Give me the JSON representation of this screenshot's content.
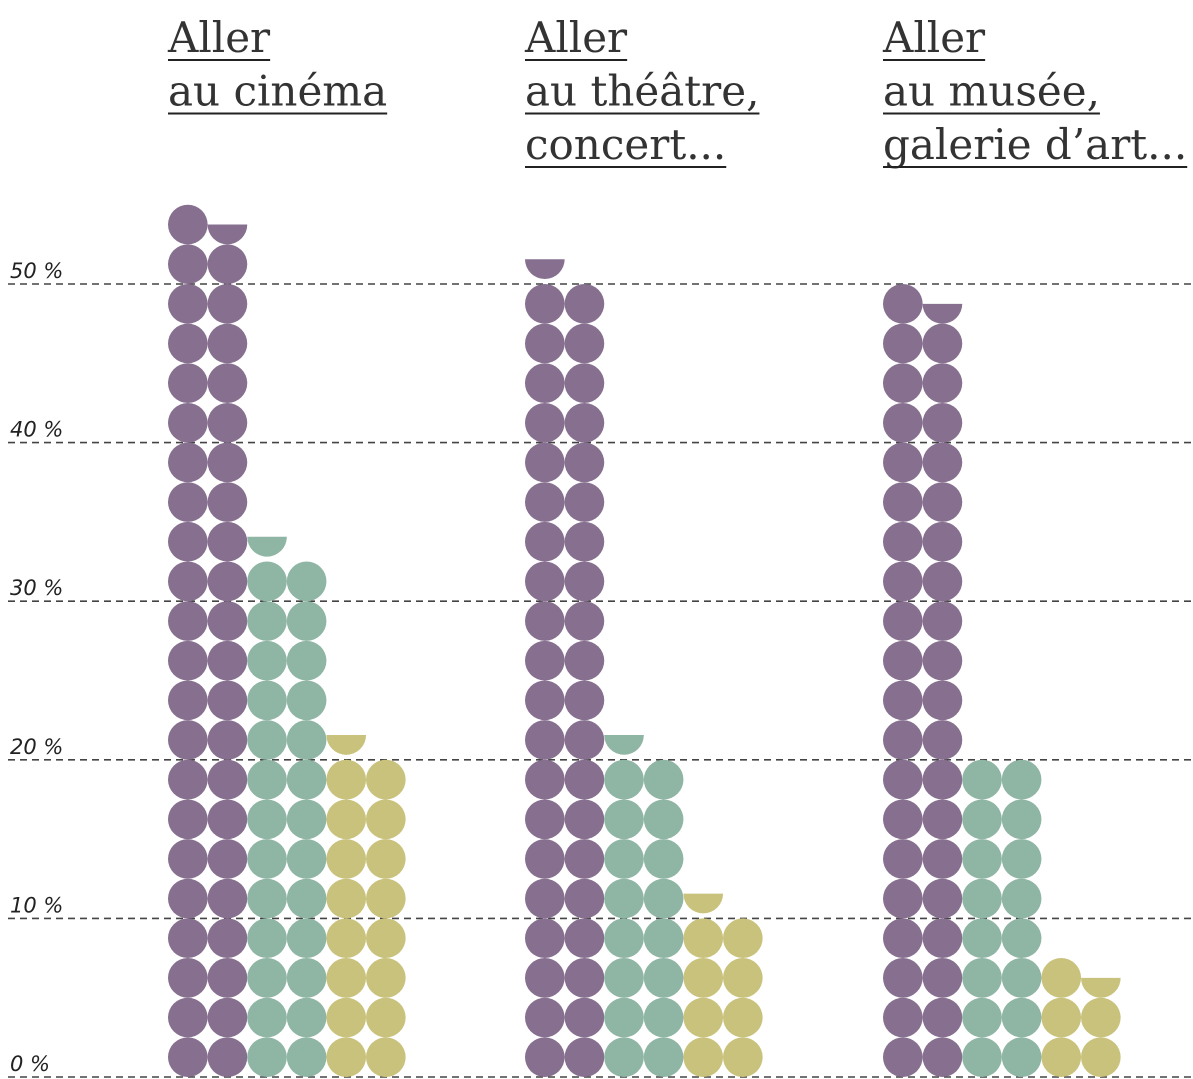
{
  "chart_data": {
    "type": "bar",
    "style": "dot-matrix (two columns of dots per bar, each dot row = 2.5 %)",
    "categories": [
      "Aller au cinéma",
      "Aller au théâtre, concert...",
      "Aller au musée, galerie d'art..."
    ],
    "category_title_lines": [
      [
        "Aller",
        "au cinéma"
      ],
      [
        "Aller",
        "au théâtre, ",
        "concert..."
      ],
      [
        "Aller",
        "au musée,",
        "galerie d’art..."
      ]
    ],
    "series": [
      {
        "values": [
          54.5,
          50.4,
          49.5
        ],
        "color": "#87708f"
      },
      {
        "values": [
          32.7,
          20.4,
          20.0
        ],
        "color": "#8fb5a4"
      },
      {
        "values": [
          20.4,
          10.1,
          7.3
        ],
        "color": "#c9c27c"
      }
    ],
    "ylim": [
      0,
      55
    ],
    "yticks": [
      0,
      10,
      20,
      30,
      40,
      50
    ],
    "ytick_labels": [
      "0 %",
      "10 %",
      "20 %",
      "30 %",
      "40 %",
      "50 %"
    ],
    "grid": true,
    "legend": "none",
    "title": "",
    "xlabel": "",
    "ylabel": ""
  }
}
